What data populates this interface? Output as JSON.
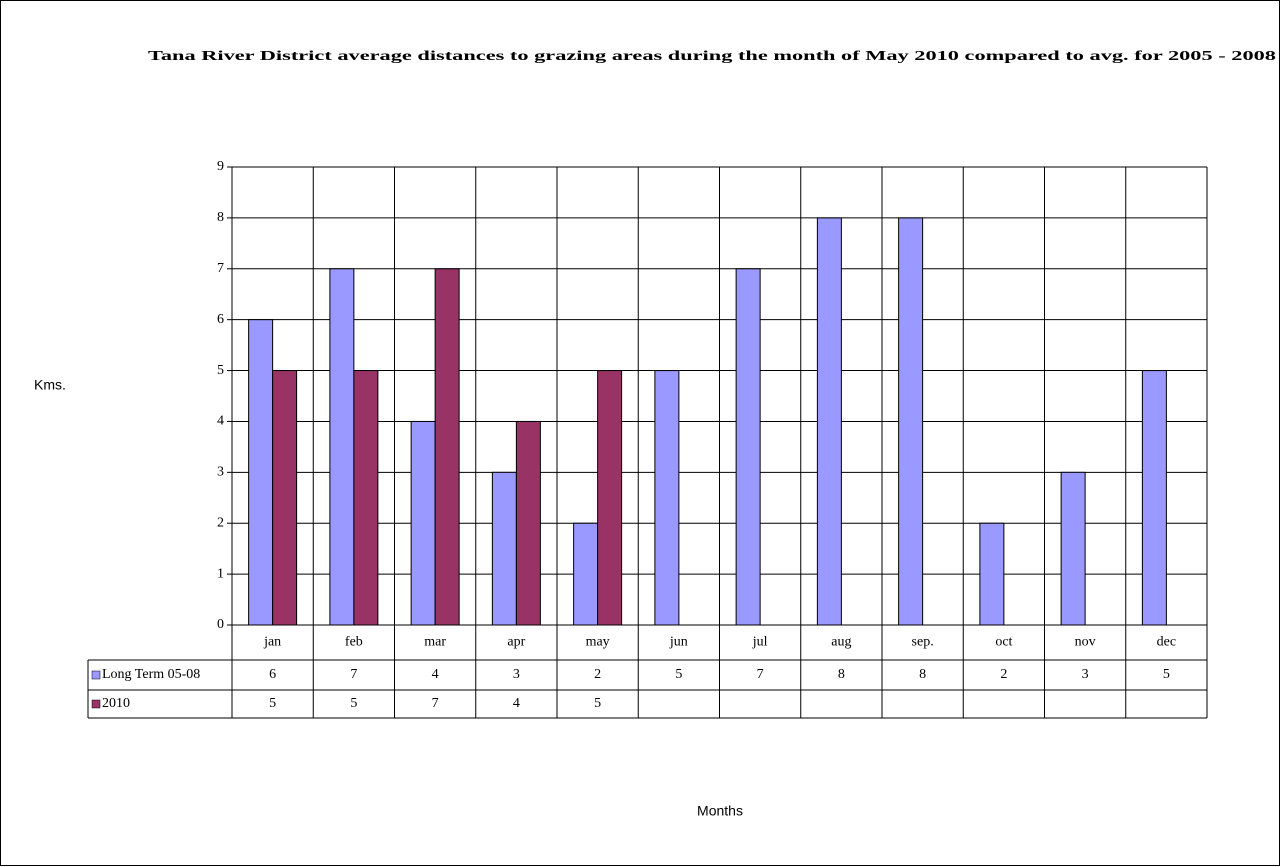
{
  "chart_data": {
    "type": "bar",
    "title": "Tana River District average distances to grazing areas during the month of May 2010 compared to avg. for 2005 - 2008",
    "y_label": "Kms.",
    "x_label": "Months",
    "categories": [
      "jan",
      "feb",
      "mar",
      "apr",
      "may",
      "jun",
      "jul",
      "aug",
      "sep.",
      "oct",
      "nov",
      "dec"
    ],
    "series": [
      {
        "name": "Long Term 05-08",
        "color": "#9999ff",
        "values": [
          6,
          7,
          4,
          3,
          2,
          5,
          7,
          8,
          8,
          2,
          3,
          5
        ]
      },
      {
        "name": "2010",
        "color": "#993366",
        "values": [
          5,
          5,
          7,
          4,
          5,
          null,
          null,
          null,
          null,
          null,
          null,
          null
        ]
      }
    ],
    "ylim": [
      0,
      9
    ],
    "yticks": [
      0,
      1,
      2,
      3,
      4,
      5,
      6,
      7,
      8,
      9
    ],
    "grid": true,
    "data_table": true
  }
}
